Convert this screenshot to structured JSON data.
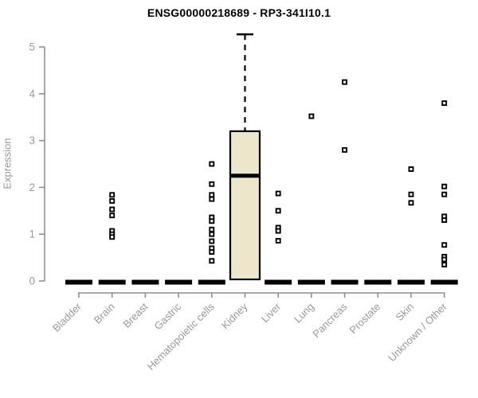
{
  "chart_data": {
    "type": "boxplot",
    "title": "ENSG00000218689 - RP3-341I10.1",
    "ylabel": "Expression",
    "xlabel": "",
    "ylim": [
      0,
      5
    ],
    "yticks": [
      0,
      1,
      2,
      3,
      4,
      5
    ],
    "grid": false,
    "legend": false,
    "categories": [
      "Bladder",
      "Brain",
      "Breast",
      "Gastric",
      "Hematopoietic cells",
      "Kidney",
      "Liver",
      "Lung",
      "Pancreas",
      "Prostate",
      "Skin",
      "Unknown / Other"
    ],
    "boxes": [
      {
        "category": "Bladder",
        "q1": 0,
        "median": 0,
        "q3": 0,
        "whisker_low": 0,
        "whisker_high": 0,
        "outliers": []
      },
      {
        "category": "Brain",
        "q1": 0,
        "median": 0,
        "q3": 0,
        "whisker_low": 0,
        "whisker_high": 0,
        "outliers": [
          1.84,
          1.71,
          1.53,
          1.4,
          1.07,
          1.0,
          0.94
        ]
      },
      {
        "category": "Breast",
        "q1": 0,
        "median": 0,
        "q3": 0,
        "whisker_low": 0,
        "whisker_high": 0,
        "outliers": []
      },
      {
        "category": "Gastric",
        "q1": 0,
        "median": 0,
        "q3": 0,
        "whisker_low": 0,
        "whisker_high": 0,
        "outliers": []
      },
      {
        "category": "Hematopoietic cells",
        "q1": 0,
        "median": 0,
        "q3": 0,
        "whisker_low": 0,
        "whisker_high": 0,
        "outliers": [
          2.5,
          2.07,
          1.84,
          1.75,
          1.36,
          1.28,
          1.1,
          1.0,
          0.85,
          0.7,
          0.62,
          0.43
        ]
      },
      {
        "category": "Kidney",
        "q1": 0,
        "median": 2.25,
        "q3": 3.2,
        "whisker_low": 0,
        "whisker_high": 5.27,
        "outliers": []
      },
      {
        "category": "Liver",
        "q1": 0,
        "median": 0,
        "q3": 0,
        "whisker_low": 0,
        "whisker_high": 0,
        "outliers": [
          1.87,
          1.5,
          1.14,
          1.07,
          0.86
        ]
      },
      {
        "category": "Lung",
        "q1": 0,
        "median": 0,
        "q3": 0,
        "whisker_low": 0,
        "whisker_high": 0,
        "outliers": [
          3.52
        ]
      },
      {
        "category": "Pancreas",
        "q1": 0,
        "median": 0,
        "q3": 0,
        "whisker_low": 0,
        "whisker_high": 0,
        "outliers": [
          4.25,
          2.8
        ]
      },
      {
        "category": "Prostate",
        "q1": 0,
        "median": 0,
        "q3": 0,
        "whisker_low": 0,
        "whisker_high": 0,
        "outliers": []
      },
      {
        "category": "Skin",
        "q1": 0,
        "median": 0,
        "q3": 0,
        "whisker_low": 0,
        "whisker_high": 0,
        "outliers": [
          2.39,
          1.85,
          1.67
        ]
      },
      {
        "category": "Unknown / Other",
        "q1": 0,
        "median": 0,
        "q3": 0,
        "whisker_low": 0,
        "whisker_high": 0,
        "outliers": [
          3.8,
          2.02,
          1.85,
          1.38,
          1.3,
          0.77,
          0.52,
          0.46,
          0.35
        ]
      }
    ],
    "colors": {
      "box_fill": "#ECE7CC",
      "box_border": "#000000",
      "median": "#000000",
      "whisker": "#000000",
      "outlier_stroke": "#000000",
      "outlier_fill": "#ffffff",
      "axis": "#8f8f8f",
      "tick_label": "#999999",
      "title": "#000000"
    }
  }
}
